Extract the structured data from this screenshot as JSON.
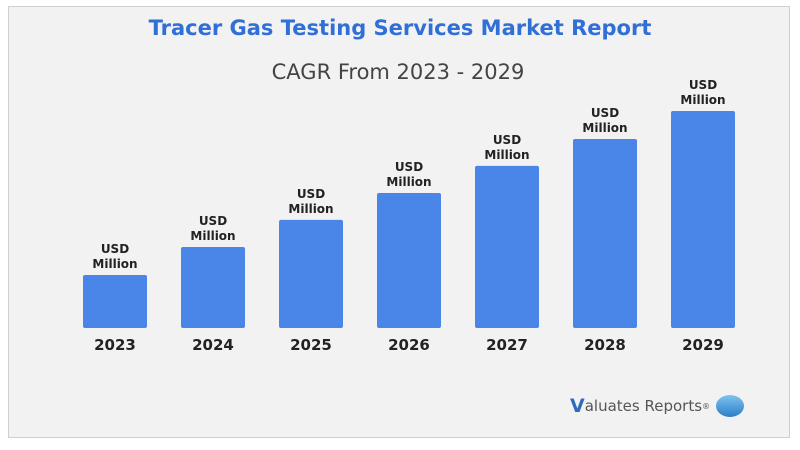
{
  "chart_data": {
    "type": "bar",
    "title": "Tracer Gas Testing Services Market Report",
    "subtitle": "CAGR From 2023 - 2029",
    "categories": [
      "2023",
      "2024",
      "2025",
      "2026",
      "2027",
      "2028",
      "2029"
    ],
    "values": [
      24.4,
      37.3,
      49.8,
      62.2,
      74.7,
      87.1,
      100
    ],
    "value_note": "relative bar heights (2029 = 100); no numeric values printed",
    "data_labels": [
      "USD Million",
      "USD Million",
      "USD Million",
      "USD Million",
      "USD Million",
      "USD Million",
      "USD Million"
    ],
    "bar_color": "#4a86e8",
    "grid": false,
    "xlabel": "",
    "ylabel": ""
  },
  "logo": {
    "v": "V",
    "text": "aluates Reports",
    "mark": "®"
  }
}
